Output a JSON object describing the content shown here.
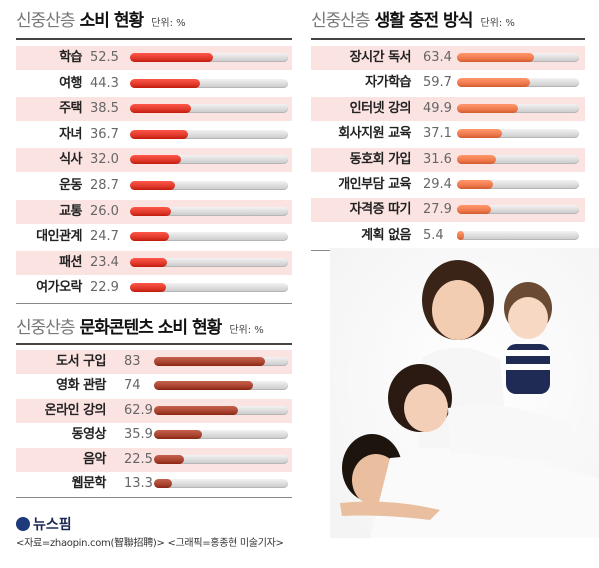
{
  "chart_data": [
    {
      "type": "bar",
      "title_prefix": "신중산층",
      "title_main": "소비 현황",
      "unit": "단위: %",
      "categories": [
        "학습",
        "여행",
        "주택",
        "자녀",
        "식사",
        "운동",
        "교통",
        "대인관계",
        "패션",
        "여가오락"
      ],
      "values": [
        52.5,
        44.3,
        38.5,
        36.7,
        32.0,
        28.7,
        26.0,
        24.7,
        23.4,
        22.9
      ],
      "value_labels": [
        "52.5",
        "44.3",
        "38.5",
        "36.7",
        "32.0",
        "28.7",
        "26.0",
        "24.7",
        "23.4",
        "22.9"
      ],
      "max": 100,
      "color": "#e0392b"
    },
    {
      "type": "bar",
      "title_prefix": "신중산층",
      "title_main": "생활 충전 방식",
      "unit": "단위: %",
      "categories": [
        "장시간 독서",
        "자가학습",
        "인터넷 강의",
        "회사지원 교육",
        "동호회 가입",
        "개인부담 교육",
        "자격증 따기",
        "계획 없음"
      ],
      "values": [
        63.4,
        59.7,
        49.9,
        37.1,
        31.6,
        29.4,
        27.9,
        5.4
      ],
      "value_labels": [
        "63.4",
        "59.7",
        "49.9",
        "37.1",
        "31.6",
        "29.4",
        "27.9",
        "5.4"
      ],
      "max": 100,
      "color": "#ef7a4d"
    },
    {
      "type": "bar",
      "title_prefix": "신중산층",
      "title_main": "문화콘텐츠 소비 현황",
      "unit": "단위: %",
      "categories": [
        "도서 구입",
        "영화 관람",
        "온라인 강의",
        "동영상",
        "음악",
        "웹문학"
      ],
      "values": [
        83,
        74,
        62.9,
        35.9,
        22.5,
        13.3
      ],
      "value_labels": [
        "83",
        "74",
        "62.9",
        "35.9",
        "22.5",
        "13.3"
      ],
      "max": 100,
      "color": "#a8432f"
    }
  ],
  "footer": {
    "logo": "뉴스핌",
    "source": "<자료=zhaopin.com(智聯招聘)> <그래픽=홍종현 미술기자>"
  },
  "photo": {
    "icon": "family-photo"
  }
}
